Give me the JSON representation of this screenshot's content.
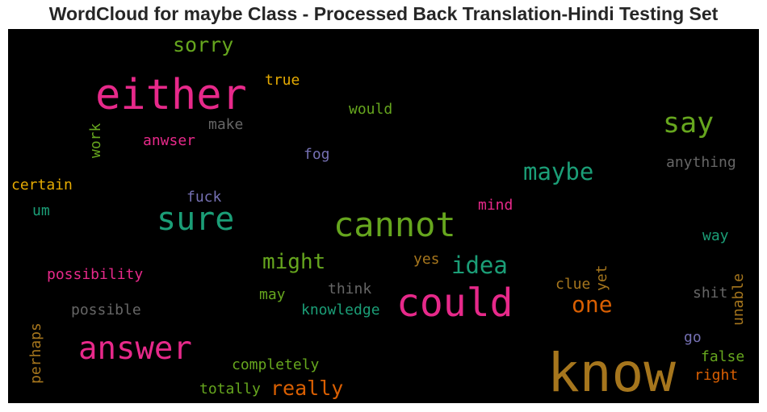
{
  "title": "WordCloud for maybe Class - Processed Back Translation-Hindi Testing Set",
  "colors": {
    "background": "#000000",
    "pink": "#e7298a",
    "green": "#66a61e",
    "teal": "#1b9e77",
    "orange": "#d95f02",
    "gold": "#e6ab02",
    "brown": "#a6761d",
    "purple": "#7570b3",
    "gray": "#666666"
  },
  "words": [
    {
      "text": "know",
      "color": "#a6761d",
      "weight": 1.0,
      "orientation": "horizontal"
    },
    {
      "text": "either",
      "color": "#e7298a",
      "weight": 0.8,
      "orientation": "horizontal"
    },
    {
      "text": "could",
      "color": "#e7298a",
      "weight": 0.75,
      "orientation": "horizontal"
    },
    {
      "text": "cannot",
      "color": "#66a61e",
      "weight": 0.65,
      "orientation": "horizontal"
    },
    {
      "text": "sure",
      "color": "#1b9e77",
      "weight": 0.6,
      "orientation": "horizontal"
    },
    {
      "text": "answer",
      "color": "#e7298a",
      "weight": 0.6,
      "orientation": "horizontal"
    },
    {
      "text": "say",
      "color": "#66a61e",
      "weight": 0.5,
      "orientation": "horizontal"
    },
    {
      "text": "maybe",
      "color": "#1b9e77",
      "weight": 0.45,
      "orientation": "horizontal"
    },
    {
      "text": "idea",
      "color": "#1b9e77",
      "weight": 0.45,
      "orientation": "horizontal"
    },
    {
      "text": "might",
      "color": "#66a61e",
      "weight": 0.4,
      "orientation": "horizontal"
    },
    {
      "text": "one",
      "color": "#d95f02",
      "weight": 0.4,
      "orientation": "horizontal"
    },
    {
      "text": "sorry",
      "color": "#66a61e",
      "weight": 0.38,
      "orientation": "horizontal"
    },
    {
      "text": "really",
      "color": "#d95f02",
      "weight": 0.38,
      "orientation": "horizontal"
    },
    {
      "text": "true",
      "color": "#e6ab02",
      "weight": 0.25,
      "orientation": "horizontal"
    },
    {
      "text": "would",
      "color": "#66a61e",
      "weight": 0.25,
      "orientation": "horizontal"
    },
    {
      "text": "make",
      "color": "#666666",
      "weight": 0.25,
      "orientation": "horizontal"
    },
    {
      "text": "anwser",
      "color": "#e7298a",
      "weight": 0.25,
      "orientation": "horizontal"
    },
    {
      "text": "work",
      "color": "#66a61e",
      "weight": 0.25,
      "orientation": "vertical"
    },
    {
      "text": "fog",
      "color": "#7570b3",
      "weight": 0.25,
      "orientation": "horizontal"
    },
    {
      "text": "anything",
      "color": "#666666",
      "weight": 0.25,
      "orientation": "horizontal"
    },
    {
      "text": "certain",
      "color": "#e6ab02",
      "weight": 0.25,
      "orientation": "horizontal"
    },
    {
      "text": "fuck",
      "color": "#7570b3",
      "weight": 0.25,
      "orientation": "horizontal"
    },
    {
      "text": "mind",
      "color": "#e7298a",
      "weight": 0.25,
      "orientation": "horizontal"
    },
    {
      "text": "um",
      "color": "#1b9e77",
      "weight": 0.25,
      "orientation": "horizontal"
    },
    {
      "text": "way",
      "color": "#1b9e77",
      "weight": 0.25,
      "orientation": "horizontal"
    },
    {
      "text": "yes",
      "color": "#a6761d",
      "weight": 0.25,
      "orientation": "horizontal"
    },
    {
      "text": "possibility",
      "color": "#e7298a",
      "weight": 0.25,
      "orientation": "horizontal"
    },
    {
      "text": "yet",
      "color": "#a6761d",
      "weight": 0.25,
      "orientation": "vertical"
    },
    {
      "text": "clue",
      "color": "#a6761d",
      "weight": 0.25,
      "orientation": "horizontal"
    },
    {
      "text": "think",
      "color": "#666666",
      "weight": 0.25,
      "orientation": "horizontal"
    },
    {
      "text": "may",
      "color": "#66a61e",
      "weight": 0.25,
      "orientation": "horizontal"
    },
    {
      "text": "shit",
      "color": "#666666",
      "weight": 0.25,
      "orientation": "horizontal"
    },
    {
      "text": "possible",
      "color": "#666666",
      "weight": 0.25,
      "orientation": "horizontal"
    },
    {
      "text": "knowledge",
      "color": "#1b9e77",
      "weight": 0.25,
      "orientation": "horizontal"
    },
    {
      "text": "unable",
      "color": "#a6761d",
      "weight": 0.25,
      "orientation": "vertical"
    },
    {
      "text": "perhaps",
      "color": "#a6761d",
      "weight": 0.25,
      "orientation": "vertical"
    },
    {
      "text": "go",
      "color": "#7570b3",
      "weight": 0.25,
      "orientation": "horizontal"
    },
    {
      "text": "false",
      "color": "#66a61e",
      "weight": 0.25,
      "orientation": "horizontal"
    },
    {
      "text": "completely",
      "color": "#66a61e",
      "weight": 0.25,
      "orientation": "horizontal"
    },
    {
      "text": "right",
      "color": "#d95f02",
      "weight": 0.25,
      "orientation": "horizontal"
    },
    {
      "text": "totally",
      "color": "#66a61e",
      "weight": 0.25,
      "orientation": "horizontal"
    }
  ]
}
